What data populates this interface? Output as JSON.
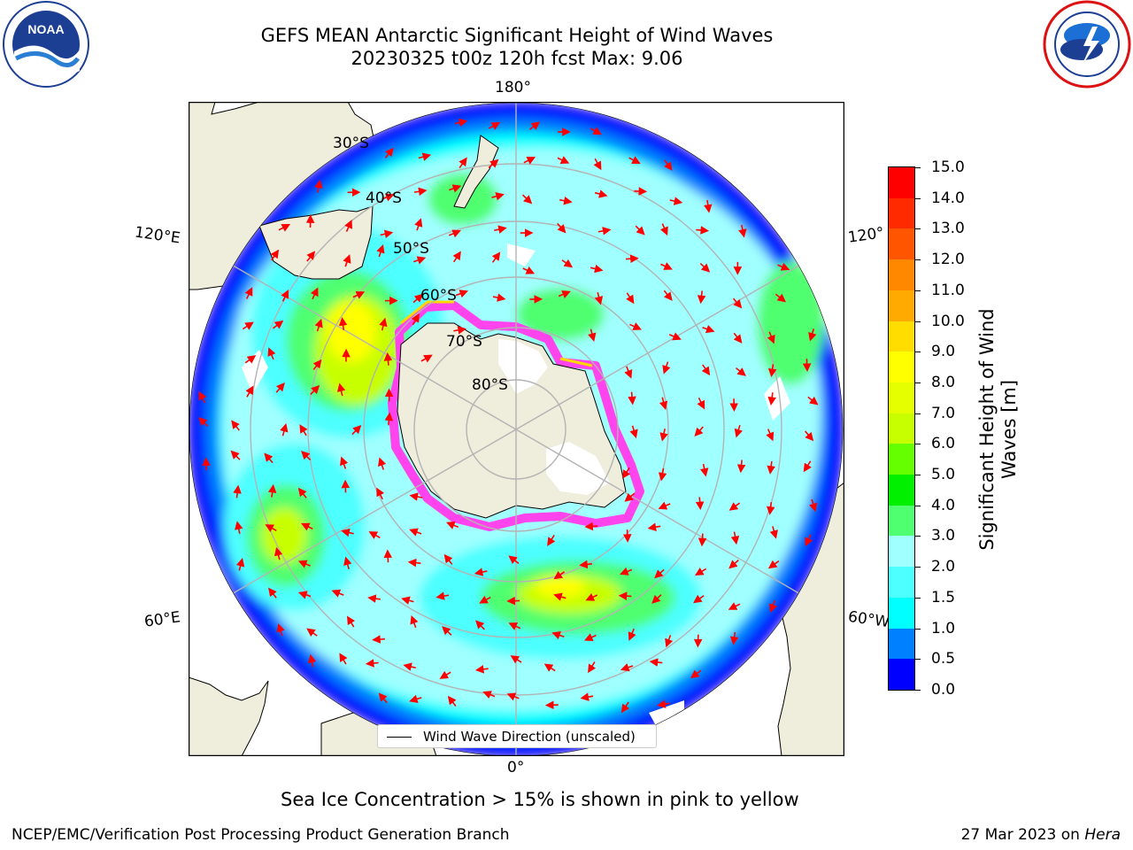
{
  "header": {
    "title_line1": "GEFS MEAN Antarctic Significant Height of Wind Waves",
    "title_line2": "20230325 t00z 120h fcst   Max: 9.06"
  },
  "logos": {
    "left": {
      "icon": "noaa-logo",
      "text": "NOAA"
    },
    "right": {
      "icon": "national-weather-service-logo"
    }
  },
  "map": {
    "projection": "south-polar-stereographic",
    "longitude_labels": {
      "top": "180°",
      "bottom": "0°",
      "left_upper": "120°E",
      "left_lower": "60°E",
      "right_upper": "120°",
      "right_lower": "60°W"
    },
    "latitude_labels": [
      "30°S",
      "40°S",
      "50°S",
      "60°S",
      "70°S",
      "80°S"
    ],
    "colors": {
      "land": "#efeddc",
      "ocean_background": "#ffffff",
      "grid": "#b3b3b3",
      "arrow": "#ff0000",
      "sea_ice_low": "#ff00ff",
      "sea_ice_high": "#ffd700"
    }
  },
  "colorbar": {
    "label_line1": "Significant Height of Wind",
    "label_line2": "Waves [m]",
    "levels": [
      0.0,
      0.5,
      1.0,
      1.5,
      2.0,
      3.0,
      4.0,
      5.0,
      6.0,
      7.0,
      8.0,
      9.0,
      10.0,
      11.0,
      12.0,
      13.0,
      14.0,
      15.0
    ],
    "tick_labels": [
      "0.0",
      "0.5",
      "1.0",
      "1.5",
      "2.0",
      "3.0",
      "4.0",
      "5.0",
      "6.0",
      "7.0",
      "8.0",
      "9.0",
      "10.0",
      "11.0",
      "12.0",
      "13.0",
      "14.0",
      "15.0"
    ],
    "colors": [
      "#0000ff",
      "#0080ff",
      "#00ffff",
      "#4dffff",
      "#a0ffff",
      "#50ff70",
      "#00f000",
      "#66ff00",
      "#c8ff00",
      "#e6ff00",
      "#ffff00",
      "#ffdd00",
      "#ffaa00",
      "#ff8800",
      "#ff5500",
      "#ff2a00",
      "#ff0000"
    ]
  },
  "legend": {
    "label": "Wind Wave Direction (unscaled)"
  },
  "caption": "Sea Ice Concentration > 15% is shown in pink to yellow",
  "footer": {
    "left": "NCEP/EMC/Verification Post Processing Product Generation Branch",
    "right_prefix": "27 Mar 2023 on ",
    "right_host": "Hera"
  }
}
